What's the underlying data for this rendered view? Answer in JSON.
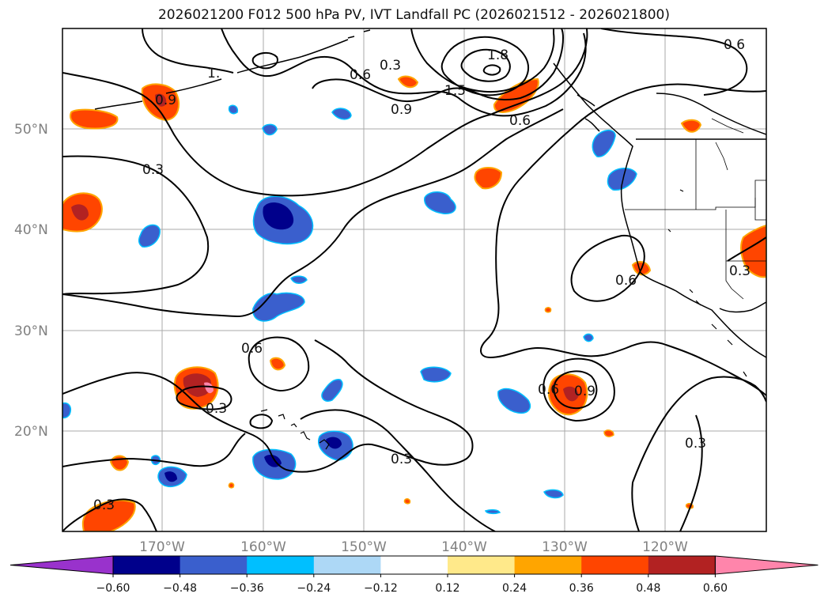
{
  "title": "2026021200 F012 500 hPa PV, IVT Landfall PC (2026021512 - 2026021800)",
  "map": {
    "lat_labels": [
      "50°N",
      "40°N",
      "30°N",
      "20°N"
    ],
    "lon_labels": [
      "170°W",
      "160°W",
      "150°W",
      "140°W",
      "130°W",
      "120°W"
    ],
    "contour_labels": [
      {
        "name": "pv-label-0-6-top-right",
        "text": "0.6"
      },
      {
        "name": "pv-label-1-8",
        "text": "1.8"
      },
      {
        "name": "pv-label-0-3-north",
        "text": "0.3"
      },
      {
        "name": "pv-label-0-6-north",
        "text": "0.6"
      },
      {
        "name": "pv-label-1-5",
        "text": "1.5"
      },
      {
        "name": "pv-label-0-9-north",
        "text": "0.9"
      },
      {
        "name": "pv-label-0-6-gulf",
        "text": "0.6"
      },
      {
        "name": "pv-label-1-2-west",
        "text": "1."
      },
      {
        "name": "pv-label-0-9-west",
        "text": "0.9"
      },
      {
        "name": "pv-label-0-3-west",
        "text": "0.3"
      },
      {
        "name": "pv-label-0-6-coast",
        "text": "0.6"
      },
      {
        "name": "pv-label-0-3-nevada",
        "text": "0.3"
      },
      {
        "name": "pv-label-0-6-central",
        "text": "0.6"
      },
      {
        "name": "pv-label-0-3-hawaii",
        "text": "0.3"
      },
      {
        "name": "pv-label-0-6-low",
        "text": "0.6"
      },
      {
        "name": "pv-label-0-9-low",
        "text": "0.9"
      },
      {
        "name": "pv-label-0-3-south",
        "text": "0.3"
      },
      {
        "name": "pv-label-0-3-southwest",
        "text": "0.3"
      },
      {
        "name": "pv-label-0-3-southeast",
        "text": "0.3"
      }
    ]
  },
  "colorbar": {
    "ticks": [
      "−0.60",
      "−0.48",
      "−0.36",
      "−0.24",
      "−0.12",
      "0.12",
      "0.24",
      "0.36",
      "0.48",
      "0.60"
    ],
    "colors": [
      "#9932cc",
      "#00008b",
      "#3a5fcd",
      "#00bfff",
      "#add8f6",
      "#ffffff",
      "#ffe98a",
      "#ffa500",
      "#ff4500",
      "#b22222",
      "#ff85ab"
    ]
  }
}
